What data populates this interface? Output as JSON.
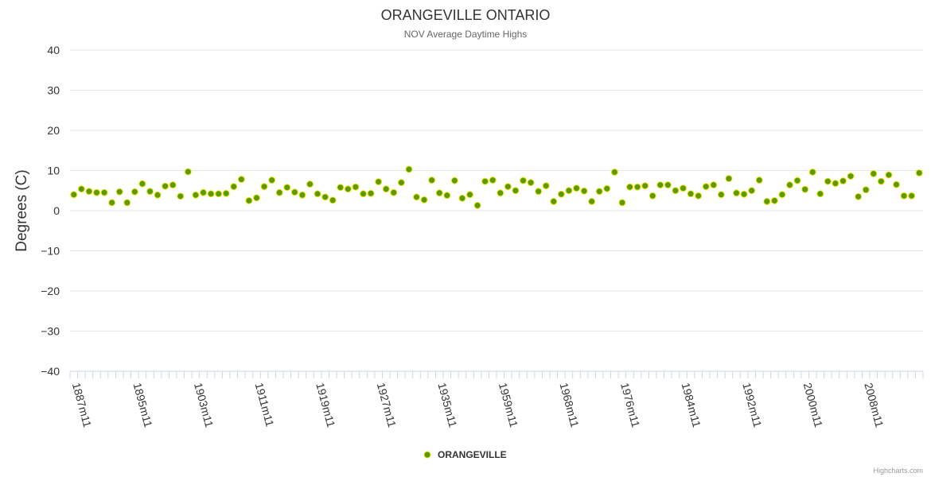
{
  "chart_data": {
    "type": "scatter",
    "title": "ORANGEVILLE ONTARIO",
    "subtitle": "NOV Average Daytime Highs",
    "ylabel": "Degrees (C)",
    "xlabel": "",
    "ylim": [
      -40,
      40
    ],
    "yticks": [
      40,
      30,
      20,
      10,
      0,
      -10,
      -20,
      -30,
      -40
    ],
    "ytick_labels": [
      "40",
      "30",
      "20",
      "10",
      "0",
      "−10",
      "−20",
      "−30",
      "−40"
    ],
    "xtick_labels": [
      "1887m11",
      "1895m11",
      "1903m11",
      "1911m11",
      "1919m11",
      "1927m11",
      "1935m11",
      "1959m11",
      "1968m11",
      "1976m11",
      "1984m11",
      "1992m11",
      "2000m11",
      "2008m11"
    ],
    "xtick_interval": 8,
    "grid": true,
    "legend_position": "bottom-center",
    "series": [
      {
        "name": "ORANGEVILLE",
        "color": "#5d9a00",
        "values": [
          4.0,
          5.4,
          4.8,
          4.5,
          4.5,
          2.0,
          4.7,
          2.0,
          4.7,
          6.7,
          4.8,
          3.9,
          6.1,
          6.4,
          3.6,
          9.7,
          3.9,
          4.5,
          4.2,
          4.2,
          4.3,
          6.0,
          7.8,
          2.5,
          3.2,
          6.0,
          7.6,
          4.5,
          5.8,
          4.6,
          3.9,
          6.6,
          4.2,
          3.4,
          2.6,
          5.8,
          5.4,
          5.9,
          4.2,
          4.3,
          7.2,
          5.4,
          4.5,
          7.0,
          10.3,
          3.4,
          2.7,
          7.6,
          4.4,
          3.8,
          7.5,
          3.1,
          4.0,
          1.3,
          7.3,
          7.6,
          4.4,
          6.0,
          5.0,
          7.5,
          7.0,
          4.8,
          6.2,
          2.3,
          4.1,
          5.0,
          5.6,
          4.9,
          2.3,
          4.8,
          5.5,
          9.6,
          2.0,
          5.9,
          5.9,
          6.2,
          3.7,
          6.4,
          6.4,
          5.0,
          5.6,
          4.2,
          3.7,
          6.0,
          6.4,
          4.0,
          8.0,
          4.4,
          4.1,
          5.0,
          7.6,
          2.3,
          2.5,
          4.0,
          6.4,
          7.5,
          5.3,
          9.6,
          4.2,
          7.3,
          6.8,
          7.4,
          8.6,
          3.5,
          5.2,
          9.2,
          7.3,
          8.9,
          6.5,
          3.7,
          3.7,
          9.4
        ]
      }
    ]
  },
  "credits": "Highcharts.com"
}
